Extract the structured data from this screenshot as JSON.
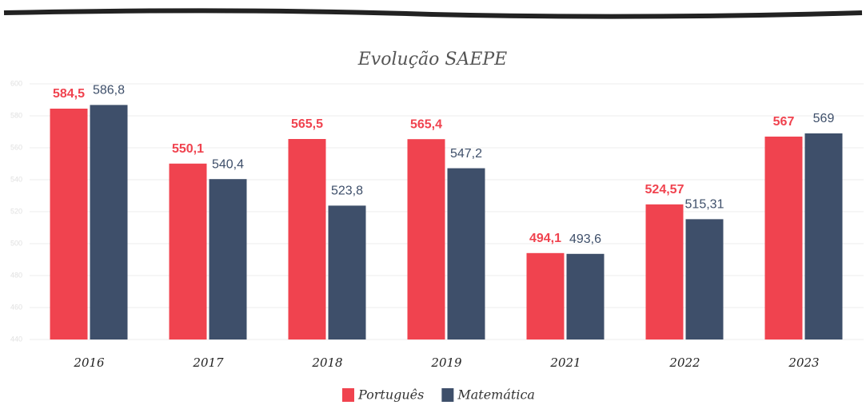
{
  "chart_data": {
    "type": "bar",
    "title": "Evolução SAEPE",
    "categories": [
      "2016",
      "2017",
      "2018",
      "2019",
      "2021",
      "2022",
      "2023"
    ],
    "series": [
      {
        "name": "Português",
        "color": "#f0434f",
        "values": [
          584.5,
          550.1,
          565.5,
          565.4,
          494.1,
          524.57,
          567
        ],
        "value_labels": [
          "584,5",
          "550,1",
          "565,5",
          "565,4",
          "494,1",
          "524,57",
          "567"
        ]
      },
      {
        "name": "Matemática",
        "color": "#3e4f6a",
        "values": [
          586.8,
          540.4,
          523.8,
          547.2,
          493.6,
          515.31,
          569
        ],
        "value_labels": [
          "586,8",
          "540,4",
          "523,8",
          "547,2",
          "493,6",
          "515,31",
          "569"
        ]
      }
    ],
    "ylim": [
      440,
      600
    ],
    "yticks": [
      440,
      460,
      480,
      500,
      520,
      540,
      560,
      580,
      600
    ],
    "grid": true,
    "legend": "bottom"
  }
}
